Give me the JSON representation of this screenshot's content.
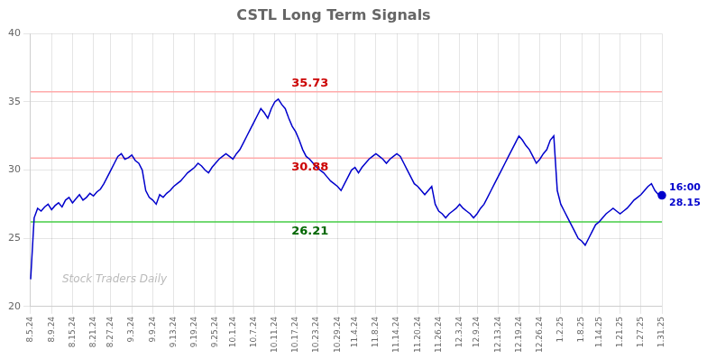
{
  "chart_data": {
    "type": "line",
    "title": "CSTL Long Term Signals",
    "color": "#0000cc",
    "ylim": [
      20,
      40
    ],
    "yticks": [
      20,
      25,
      30,
      35,
      40
    ],
    "grid": true,
    "categories": [
      "8.5.24",
      null,
      null,
      null,
      null,
      null,
      "8.9.24",
      null,
      null,
      null,
      null,
      null,
      "8.15.24",
      null,
      null,
      null,
      null,
      null,
      "8.21.24",
      null,
      null,
      null,
      null,
      "8.27.24",
      null,
      null,
      null,
      null,
      null,
      "9.3.24",
      null,
      null,
      null,
      null,
      null,
      "9.9.24",
      null,
      null,
      null,
      null,
      null,
      "9.13.24",
      null,
      null,
      null,
      null,
      null,
      "9.19.24",
      null,
      null,
      null,
      null,
      null,
      "9.25.24",
      null,
      null,
      null,
      null,
      "10.1.24",
      null,
      null,
      null,
      null,
      null,
      "10.7.24",
      null,
      null,
      null,
      null,
      null,
      "10.11.24",
      null,
      null,
      null,
      null,
      null,
      "10.17.24",
      null,
      null,
      null,
      null,
      null,
      "10.23.24",
      null,
      null,
      null,
      null,
      null,
      "10.29.24",
      null,
      null,
      null,
      null,
      "11.4.24",
      null,
      null,
      null,
      null,
      null,
      "11.8.24",
      null,
      null,
      null,
      null,
      null,
      "11.14.24",
      null,
      null,
      null,
      null,
      null,
      "11.20.24",
      null,
      null,
      null,
      null,
      null,
      "11.26.24",
      null,
      null,
      null,
      null,
      null,
      "12.3.24",
      null,
      null,
      null,
      null,
      "12.9.24",
      null,
      null,
      null,
      null,
      null,
      "12.13.24",
      null,
      null,
      null,
      null,
      null,
      "12.19.24",
      null,
      null,
      null,
      null,
      null,
      "12.26.24",
      null,
      null,
      null,
      null,
      null,
      "1.2.25",
      null,
      null,
      null,
      null,
      null,
      "1.8.25",
      null,
      null,
      null,
      null,
      "1.14.25",
      null,
      null,
      null,
      null,
      null,
      "1.21.25",
      null,
      null,
      null,
      null,
      null,
      "1.27.25",
      null,
      null,
      null,
      null,
      null,
      "1.31.25"
    ],
    "values": [
      22.0,
      26.5,
      27.2,
      27.0,
      27.3,
      27.5,
      27.1,
      27.4,
      27.6,
      27.3,
      27.8,
      28.0,
      27.6,
      27.9,
      28.2,
      27.8,
      28.0,
      28.3,
      28.1,
      28.4,
      28.6,
      29.0,
      29.5,
      30.0,
      30.5,
      31.0,
      31.2,
      30.8,
      30.9,
      31.1,
      30.7,
      30.5,
      30.0,
      28.5,
      28.0,
      27.8,
      27.5,
      28.2,
      28.0,
      28.3,
      28.5,
      28.8,
      29.0,
      29.2,
      29.5,
      29.8,
      30.0,
      30.2,
      30.5,
      30.3,
      30.0,
      29.8,
      30.2,
      30.5,
      30.8,
      31.0,
      31.2,
      31.0,
      30.8,
      31.2,
      31.5,
      32.0,
      32.5,
      33.0,
      33.5,
      34.0,
      34.5,
      34.2,
      33.8,
      34.5,
      35.0,
      35.2,
      34.8,
      34.5,
      33.8,
      33.2,
      32.8,
      32.2,
      31.5,
      31.0,
      30.8,
      30.5,
      30.2,
      30.0,
      29.8,
      29.5,
      29.2,
      29.0,
      28.8,
      28.5,
      29.0,
      29.5,
      30.0,
      30.2,
      29.8,
      30.2,
      30.5,
      30.8,
      31.0,
      31.2,
      31.0,
      30.8,
      30.5,
      30.8,
      31.0,
      31.2,
      31.0,
      30.5,
      30.0,
      29.5,
      29.0,
      28.8,
      28.5,
      28.2,
      28.5,
      28.8,
      27.5,
      27.0,
      26.8,
      26.5,
      26.8,
      27.0,
      27.2,
      27.5,
      27.2,
      27.0,
      26.8,
      26.5,
      26.8,
      27.2,
      27.5,
      28.0,
      28.5,
      29.0,
      29.5,
      30.0,
      30.5,
      31.0,
      31.5,
      32.0,
      32.5,
      32.2,
      31.8,
      31.5,
      31.0,
      30.5,
      30.8,
      31.2,
      31.5,
      32.2,
      32.5,
      28.5,
      27.5,
      27.0,
      26.5,
      26.0,
      25.5,
      25.0,
      24.8,
      24.5,
      25.0,
      25.5,
      26.0,
      26.2,
      26.5,
      26.8,
      27.0,
      27.2,
      27.0,
      26.8,
      27.0,
      27.2,
      27.5,
      27.8,
      28.0,
      28.2,
      28.5,
      28.8,
      29.0,
      28.5,
      28.2,
      28.15
    ],
    "reference_lines": [
      {
        "value": 35.73,
        "color": "#ffaaaa",
        "label": "35.73",
        "label_color": "#cc0000"
      },
      {
        "value": 30.88,
        "color": "#ffaaaa",
        "label": "30.88",
        "label_color": "#cc0000"
      },
      {
        "value": 26.21,
        "color": "#44cc44",
        "label": "26.21",
        "label_color": "#006600"
      }
    ],
    "end_annotations": [
      {
        "text": "16:00",
        "color": "#0000cc"
      },
      {
        "text": "28.15",
        "color": "#0000cc"
      }
    ],
    "watermark": "Stock Traders Daily",
    "watermark_color": "#bbbbbb"
  }
}
